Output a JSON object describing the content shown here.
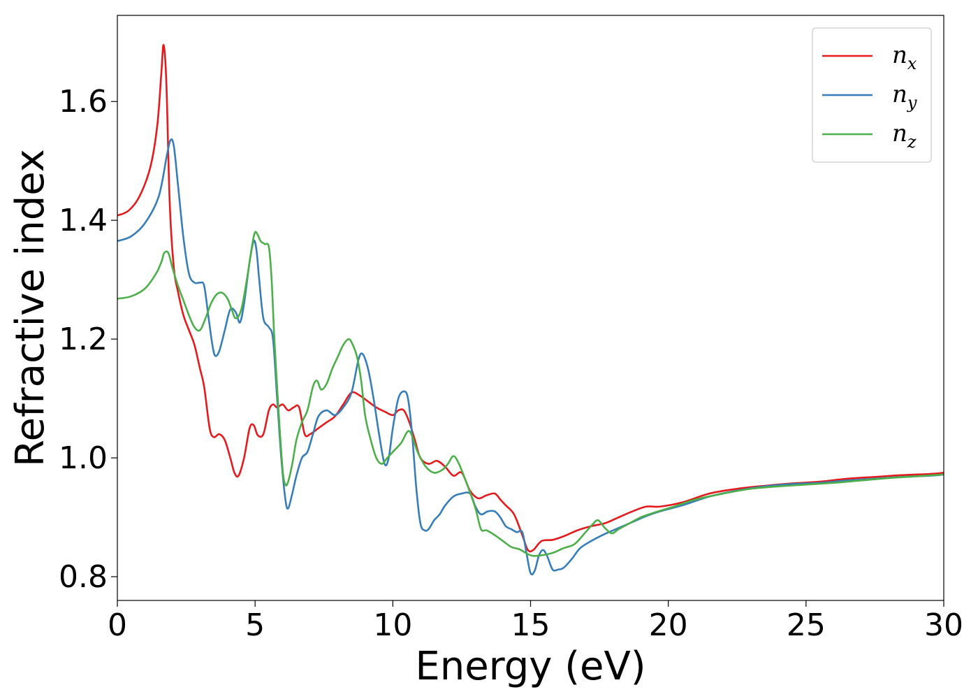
{
  "chart_data": {
    "type": "line",
    "title": "",
    "xlabel": "Energy (eV)",
    "ylabel": "Refractive index",
    "xlim": [
      0,
      30
    ],
    "ylim": [
      0.76,
      1.745
    ],
    "xticks": [
      0,
      5,
      10,
      15,
      20,
      25,
      30
    ],
    "xtick_labels": [
      "0",
      "5",
      "10",
      "15",
      "20",
      "25",
      "30"
    ],
    "yticks": [
      0.8,
      1.0,
      1.2,
      1.4,
      1.6
    ],
    "ytick_labels": [
      "0.8",
      "1.0",
      "1.2",
      "1.4",
      "1.6"
    ],
    "grid": false,
    "legend_position": "top-right",
    "series": [
      {
        "name": "n_x",
        "label_base": "n",
        "label_sub": "x",
        "color": "#e41a1c",
        "x": [
          0,
          0.4,
          0.8,
          1.2,
          1.45,
          1.6,
          1.68,
          1.78,
          1.9,
          2.05,
          2.2,
          2.4,
          2.6,
          2.8,
          3.0,
          3.15,
          3.35,
          3.5,
          3.7,
          3.9,
          4.1,
          4.25,
          4.4,
          4.6,
          4.8,
          4.95,
          5.1,
          5.3,
          5.5,
          5.65,
          5.8,
          6.0,
          6.2,
          6.4,
          6.6,
          6.8,
          7.0,
          7.3,
          7.6,
          7.9,
          8.2,
          8.5,
          8.8,
          9.1,
          9.4,
          9.7,
          10.0,
          10.2,
          10.4,
          10.6,
          10.8,
          11.0,
          11.3,
          11.6,
          11.9,
          12.2,
          12.5,
          12.8,
          13.1,
          13.4,
          13.7,
          13.9,
          14.1,
          14.4,
          14.7,
          14.9,
          15.1,
          15.4,
          15.8,
          16.2,
          16.7,
          17.2,
          17.7,
          18.2,
          18.7,
          19.2,
          19.7,
          20.5,
          21.5,
          22.5,
          23.5,
          24.5,
          25.5,
          26.5,
          27.5,
          28.5,
          29.5,
          30
        ],
        "y": [
          1.408,
          1.416,
          1.44,
          1.49,
          1.56,
          1.65,
          1.695,
          1.63,
          1.43,
          1.32,
          1.28,
          1.24,
          1.215,
          1.19,
          1.15,
          1.12,
          1.05,
          1.035,
          1.04,
          1.03,
          1.0,
          0.975,
          0.97,
          1.0,
          1.05,
          1.055,
          1.038,
          1.04,
          1.08,
          1.09,
          1.085,
          1.09,
          1.08,
          1.085,
          1.085,
          1.04,
          1.04,
          1.05,
          1.06,
          1.07,
          1.09,
          1.11,
          1.105,
          1.095,
          1.085,
          1.078,
          1.072,
          1.08,
          1.08,
          1.06,
          1.03,
          1.0,
          0.99,
          0.995,
          0.985,
          0.97,
          0.975,
          0.945,
          0.932,
          0.937,
          0.94,
          0.93,
          0.92,
          0.905,
          0.87,
          0.845,
          0.845,
          0.86,
          0.862,
          0.868,
          0.878,
          0.885,
          0.89,
          0.9,
          0.91,
          0.918,
          0.918,
          0.925,
          0.94,
          0.948,
          0.953,
          0.957,
          0.96,
          0.965,
          0.968,
          0.971,
          0.973,
          0.975
        ]
      },
      {
        "name": "n_y",
        "label_base": "n",
        "label_sub": "y",
        "color": "#377eb8",
        "x": [
          0,
          0.5,
          1.0,
          1.5,
          1.8,
          1.93,
          2.05,
          2.2,
          2.4,
          2.6,
          2.8,
          3.0,
          3.15,
          3.3,
          3.45,
          3.55,
          3.7,
          3.9,
          4.1,
          4.3,
          4.45,
          4.6,
          4.8,
          4.95,
          5.05,
          5.15,
          5.3,
          5.5,
          5.65,
          5.8,
          5.95,
          6.1,
          6.2,
          6.35,
          6.5,
          6.7,
          6.9,
          7.1,
          7.3,
          7.6,
          7.9,
          8.2,
          8.5,
          8.75,
          8.9,
          9.1,
          9.3,
          9.5,
          9.7,
          9.85,
          10.0,
          10.2,
          10.4,
          10.55,
          10.7,
          10.85,
          11.0,
          11.15,
          11.3,
          11.5,
          11.7,
          11.9,
          12.2,
          12.5,
          12.8,
          13.0,
          13.2,
          13.45,
          13.7,
          13.9,
          14.1,
          14.3,
          14.5,
          14.7,
          14.85,
          15.0,
          15.15,
          15.3,
          15.45,
          15.6,
          15.8,
          16.0,
          16.2,
          16.5,
          16.8,
          17.2,
          17.7,
          18.2,
          18.7,
          19.2,
          19.7,
          20.5,
          21.5,
          22.5,
          23.5,
          24.5,
          25.5,
          26.5,
          27.5,
          28.5,
          29.5,
          30
        ],
        "y": [
          1.365,
          1.373,
          1.395,
          1.44,
          1.51,
          1.535,
          1.525,
          1.46,
          1.37,
          1.31,
          1.295,
          1.295,
          1.29,
          1.24,
          1.19,
          1.172,
          1.18,
          1.215,
          1.25,
          1.245,
          1.228,
          1.26,
          1.33,
          1.365,
          1.35,
          1.3,
          1.235,
          1.22,
          1.2,
          1.1,
          1.0,
          0.93,
          0.915,
          0.94,
          0.97,
          1.0,
          1.01,
          1.04,
          1.07,
          1.08,
          1.072,
          1.085,
          1.11,
          1.165,
          1.175,
          1.15,
          1.1,
          1.04,
          0.99,
          1.0,
          1.05,
          1.1,
          1.112,
          1.1,
          1.04,
          0.95,
          0.89,
          0.878,
          0.88,
          0.895,
          0.905,
          0.92,
          0.935,
          0.94,
          0.94,
          0.918,
          0.905,
          0.91,
          0.91,
          0.9,
          0.885,
          0.88,
          0.875,
          0.875,
          0.84,
          0.806,
          0.81,
          0.835,
          0.845,
          0.835,
          0.812,
          0.812,
          0.815,
          0.83,
          0.848,
          0.86,
          0.872,
          0.882,
          0.892,
          0.902,
          0.91,
          0.92,
          0.935,
          0.945,
          0.952,
          0.956,
          0.958,
          0.962,
          0.965,
          0.968,
          0.97,
          0.972
        ]
      },
      {
        "name": "n_z",
        "label_base": "n",
        "label_sub": "z",
        "color": "#4daf4a",
        "x": [
          0,
          0.5,
          1.0,
          1.4,
          1.6,
          1.7,
          1.85,
          2.0,
          2.2,
          2.4,
          2.6,
          2.8,
          3.0,
          3.2,
          3.4,
          3.6,
          3.8,
          4.0,
          4.15,
          4.3,
          4.5,
          4.7,
          4.9,
          5.0,
          5.1,
          5.2,
          5.35,
          5.5,
          5.6,
          5.7,
          5.85,
          6.0,
          6.1,
          6.2,
          6.35,
          6.5,
          6.7,
          6.9,
          7.1,
          7.25,
          7.4,
          7.6,
          7.8,
          8.0,
          8.2,
          8.4,
          8.55,
          8.7,
          8.85,
          9.0,
          9.2,
          9.4,
          9.6,
          9.8,
          10.0,
          10.3,
          10.6,
          10.9,
          11.2,
          11.5,
          11.8,
          12.0,
          12.2,
          12.4,
          12.7,
          13.0,
          13.2,
          13.4,
          13.7,
          14.0,
          14.3,
          14.6,
          14.9,
          15.1,
          15.4,
          15.8,
          16.2,
          16.6,
          17.0,
          17.25,
          17.45,
          17.7,
          17.95,
          18.2,
          18.6,
          19.0,
          19.5,
          20.2,
          21.0,
          22.0,
          23.0,
          24.0,
          25.0,
          26.0,
          27.0,
          28.0,
          29.0,
          30
        ],
        "y": [
          1.268,
          1.272,
          1.285,
          1.31,
          1.33,
          1.345,
          1.345,
          1.32,
          1.29,
          1.265,
          1.24,
          1.22,
          1.215,
          1.235,
          1.26,
          1.275,
          1.278,
          1.268,
          1.25,
          1.235,
          1.25,
          1.3,
          1.36,
          1.38,
          1.375,
          1.365,
          1.36,
          1.355,
          1.3,
          1.2,
          1.08,
          0.98,
          0.955,
          0.96,
          0.99,
          1.03,
          1.06,
          1.08,
          1.12,
          1.13,
          1.115,
          1.125,
          1.15,
          1.17,
          1.19,
          1.2,
          1.19,
          1.17,
          1.13,
          1.07,
          1.03,
          1.0,
          0.99,
          1.0,
          1.01,
          1.025,
          1.045,
          1.01,
          0.985,
          0.975,
          0.98,
          0.99,
          1.003,
          0.99,
          0.955,
          0.915,
          0.88,
          0.878,
          0.87,
          0.86,
          0.85,
          0.846,
          0.838,
          0.835,
          0.836,
          0.84,
          0.848,
          0.855,
          0.875,
          0.888,
          0.895,
          0.882,
          0.873,
          0.88,
          0.89,
          0.9,
          0.908,
          0.918,
          0.93,
          0.94,
          0.948,
          0.952,
          0.955,
          0.958,
          0.962,
          0.966,
          0.969,
          0.972
        ]
      }
    ]
  }
}
